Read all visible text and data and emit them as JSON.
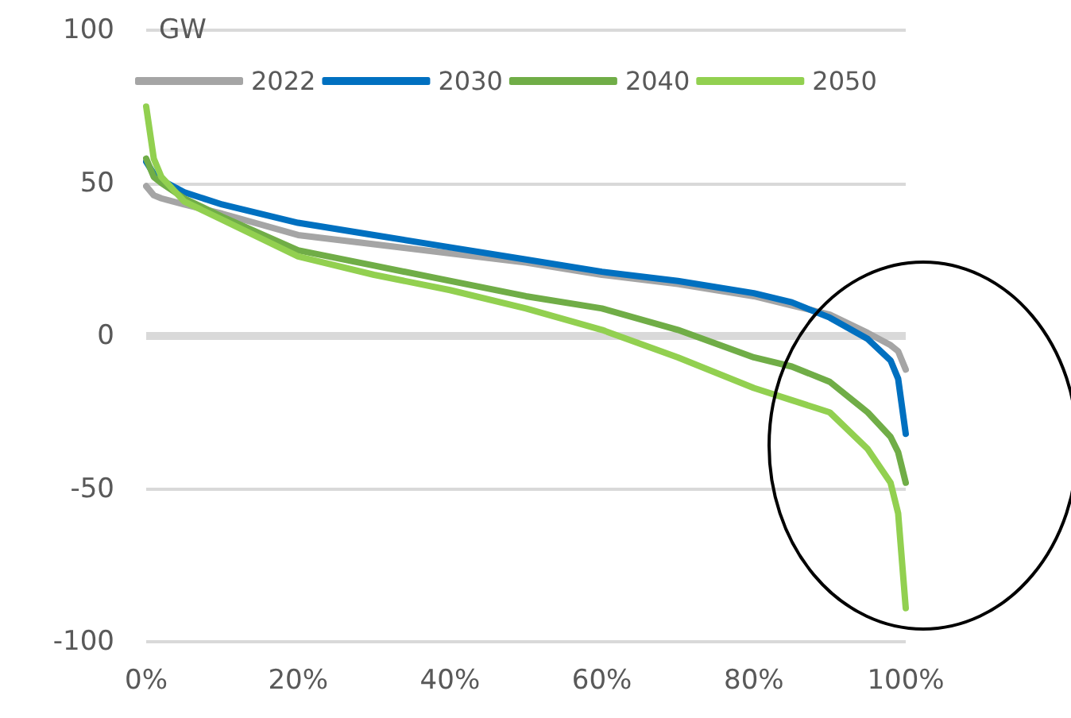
{
  "chart_data": {
    "type": "line",
    "ylabel": "GW",
    "x": [
      0,
      1,
      2,
      5,
      10,
      20,
      30,
      40,
      50,
      60,
      70,
      80,
      85,
      90,
      95,
      98,
      99,
      100
    ],
    "series": [
      {
        "name": "2022",
        "color": "#a5a5a5",
        "values": [
          49,
          46,
          45,
          43,
          40,
          33,
          30,
          27,
          24,
          20,
          17,
          13,
          10,
          7,
          1,
          -3,
          -5,
          -11
        ]
      },
      {
        "name": "2030",
        "color": "#0070c0",
        "values": [
          57,
          53,
          51,
          47,
          43,
          37,
          33,
          29,
          25,
          21,
          18,
          14,
          11,
          6,
          -1,
          -8,
          -14,
          -32
        ]
      },
      {
        "name": "2040",
        "color": "#70ad47",
        "values": [
          58,
          52,
          50,
          45,
          39,
          28,
          23,
          18,
          13,
          9,
          2,
          -7,
          -10,
          -15,
          -25,
          -33,
          -38,
          -48
        ]
      },
      {
        "name": "2050",
        "color": "#92d050",
        "values": [
          75,
          58,
          52,
          44,
          38,
          26,
          20,
          15,
          9,
          2,
          -7,
          -17,
          -21,
          -25,
          -37,
          -48,
          -58,
          -89
        ]
      }
    ],
    "xlim": [
      0,
      100
    ],
    "xticks": [
      {
        "value": 0,
        "label": "0%"
      },
      {
        "value": 20,
        "label": "20%"
      },
      {
        "value": 40,
        "label": "40%"
      },
      {
        "value": 60,
        "label": "60%"
      },
      {
        "value": 80,
        "label": "80%"
      },
      {
        "value": 100,
        "label": "100%"
      }
    ],
    "ylim": [
      -100,
      100
    ],
    "yticks": [
      -100,
      -50,
      0,
      50,
      100
    ],
    "grid": "y",
    "legend": "top",
    "marker": "none",
    "line_style": "solid"
  }
}
